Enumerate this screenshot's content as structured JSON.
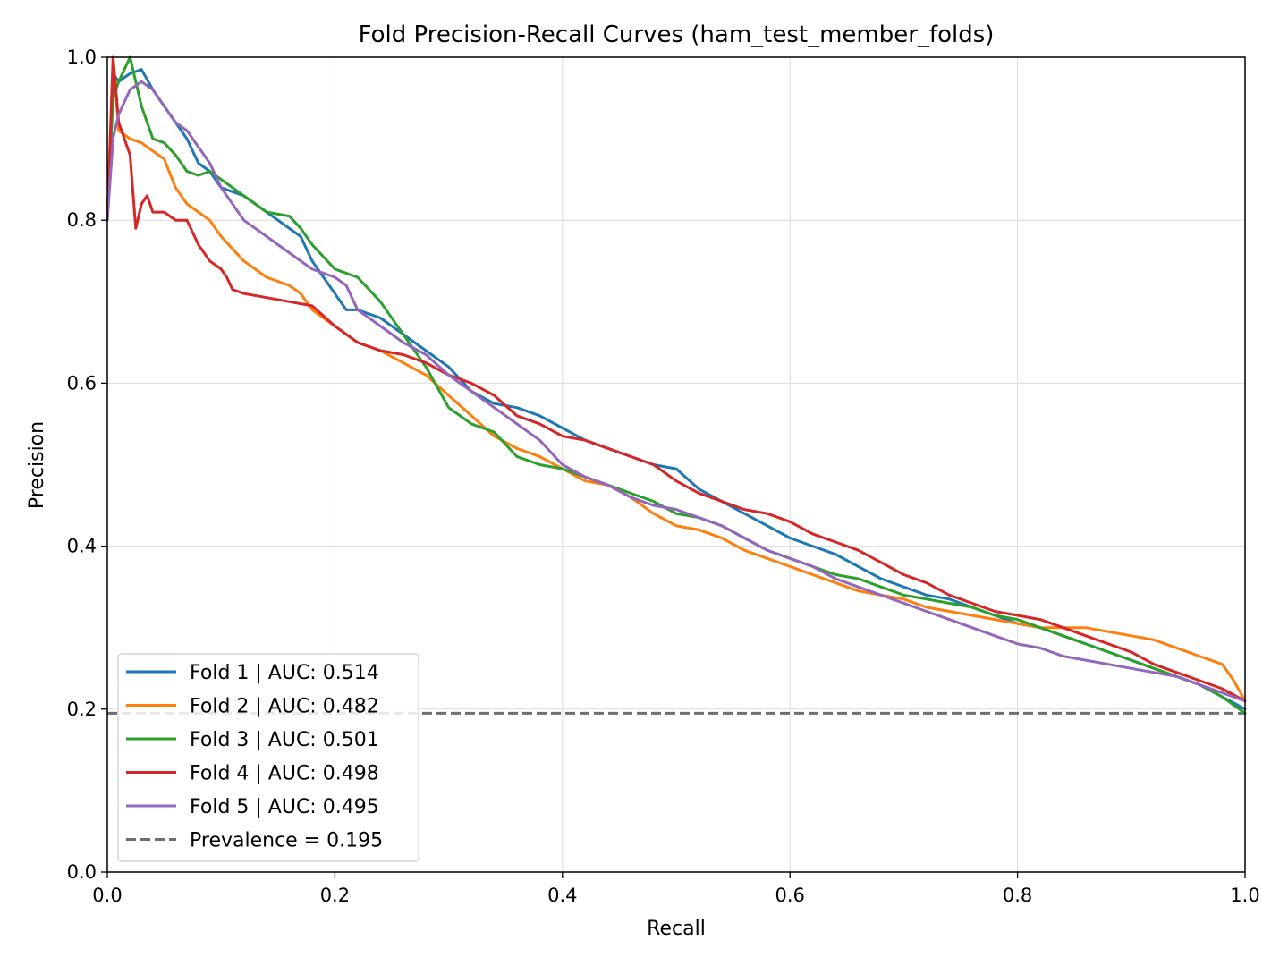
{
  "chart_data": {
    "type": "line",
    "title": "Fold Precision-Recall Curves (ham_test_member_folds)",
    "xlabel": "Recall",
    "ylabel": "Precision",
    "xlim": [
      0.0,
      1.0
    ],
    "ylim": [
      0.0,
      1.0
    ],
    "xticks": [
      "0.0",
      "0.2",
      "0.4",
      "0.6",
      "0.8",
      "1.0"
    ],
    "yticks": [
      "0.0",
      "0.2",
      "0.4",
      "0.6",
      "0.8",
      "1.0"
    ],
    "grid": true,
    "legend_position": "lower-left",
    "series": [
      {
        "name": "Fold 1 | AUC: 0.514",
        "color": "#1f77b4",
        "x": [
          0.0,
          0.005,
          0.01,
          0.02,
          0.03,
          0.04,
          0.05,
          0.06,
          0.07,
          0.08,
          0.09,
          0.1,
          0.12,
          0.14,
          0.16,
          0.17,
          0.18,
          0.19,
          0.2,
          0.21,
          0.22,
          0.24,
          0.26,
          0.28,
          0.3,
          0.32,
          0.34,
          0.36,
          0.38,
          0.4,
          0.42,
          0.44,
          0.46,
          0.48,
          0.5,
          0.52,
          0.54,
          0.56,
          0.58,
          0.6,
          0.62,
          0.64,
          0.66,
          0.68,
          0.7,
          0.72,
          0.74,
          0.76,
          0.78,
          0.8,
          0.82,
          0.84,
          0.86,
          0.88,
          0.9,
          0.92,
          0.94,
          0.96,
          0.98,
          1.0
        ],
        "y": [
          0.8,
          0.98,
          0.97,
          0.98,
          0.985,
          0.96,
          0.94,
          0.92,
          0.9,
          0.87,
          0.86,
          0.84,
          0.83,
          0.81,
          0.79,
          0.78,
          0.75,
          0.73,
          0.71,
          0.69,
          0.69,
          0.68,
          0.66,
          0.64,
          0.62,
          0.59,
          0.575,
          0.57,
          0.56,
          0.545,
          0.53,
          0.52,
          0.51,
          0.5,
          0.495,
          0.47,
          0.455,
          0.44,
          0.425,
          0.41,
          0.4,
          0.39,
          0.375,
          0.36,
          0.35,
          0.34,
          0.335,
          0.325,
          0.315,
          0.305,
          0.3,
          0.29,
          0.28,
          0.27,
          0.26,
          0.25,
          0.24,
          0.23,
          0.215,
          0.2
        ]
      },
      {
        "name": "Fold 2 | AUC: 0.482",
        "color": "#ff7f0e",
        "x": [
          0.0,
          0.005,
          0.01,
          0.02,
          0.03,
          0.04,
          0.05,
          0.06,
          0.07,
          0.08,
          0.09,
          0.1,
          0.12,
          0.14,
          0.16,
          0.17,
          0.18,
          0.2,
          0.22,
          0.24,
          0.26,
          0.28,
          0.3,
          0.32,
          0.34,
          0.36,
          0.38,
          0.4,
          0.42,
          0.44,
          0.46,
          0.48,
          0.5,
          0.52,
          0.54,
          0.56,
          0.58,
          0.6,
          0.62,
          0.64,
          0.66,
          0.68,
          0.7,
          0.72,
          0.74,
          0.76,
          0.78,
          0.8,
          0.82,
          0.84,
          0.86,
          0.88,
          0.9,
          0.92,
          0.94,
          0.96,
          0.98,
          0.99,
          1.0
        ],
        "y": [
          0.8,
          1.0,
          0.91,
          0.9,
          0.895,
          0.885,
          0.875,
          0.84,
          0.82,
          0.81,
          0.8,
          0.78,
          0.75,
          0.73,
          0.72,
          0.71,
          0.69,
          0.67,
          0.65,
          0.64,
          0.625,
          0.61,
          0.585,
          0.56,
          0.535,
          0.52,
          0.51,
          0.495,
          0.48,
          0.475,
          0.46,
          0.44,
          0.425,
          0.42,
          0.41,
          0.395,
          0.385,
          0.375,
          0.365,
          0.355,
          0.345,
          0.34,
          0.335,
          0.325,
          0.32,
          0.315,
          0.31,
          0.305,
          0.3,
          0.3,
          0.3,
          0.295,
          0.29,
          0.285,
          0.275,
          0.265,
          0.255,
          0.235,
          0.21
        ]
      },
      {
        "name": "Fold 3 | AUC: 0.501",
        "color": "#2ca02c",
        "x": [
          0.0,
          0.005,
          0.01,
          0.02,
          0.03,
          0.04,
          0.05,
          0.06,
          0.07,
          0.08,
          0.09,
          0.1,
          0.12,
          0.14,
          0.16,
          0.17,
          0.18,
          0.2,
          0.22,
          0.24,
          0.26,
          0.28,
          0.3,
          0.32,
          0.34,
          0.36,
          0.38,
          0.4,
          0.42,
          0.44,
          0.46,
          0.48,
          0.5,
          0.52,
          0.54,
          0.56,
          0.58,
          0.6,
          0.62,
          0.64,
          0.66,
          0.68,
          0.7,
          0.72,
          0.74,
          0.76,
          0.78,
          0.8,
          0.82,
          0.84,
          0.86,
          0.88,
          0.9,
          0.92,
          0.94,
          0.96,
          0.98,
          1.0
        ],
        "y": [
          0.8,
          0.95,
          0.97,
          1.0,
          0.94,
          0.9,
          0.895,
          0.88,
          0.86,
          0.855,
          0.86,
          0.85,
          0.83,
          0.81,
          0.805,
          0.79,
          0.77,
          0.74,
          0.73,
          0.7,
          0.66,
          0.62,
          0.57,
          0.55,
          0.54,
          0.51,
          0.5,
          0.495,
          0.485,
          0.475,
          0.465,
          0.455,
          0.44,
          0.435,
          0.425,
          0.41,
          0.395,
          0.385,
          0.375,
          0.365,
          0.36,
          0.35,
          0.34,
          0.335,
          0.33,
          0.325,
          0.315,
          0.31,
          0.3,
          0.29,
          0.28,
          0.27,
          0.26,
          0.25,
          0.24,
          0.23,
          0.215,
          0.195
        ]
      },
      {
        "name": "Fold 4 | AUC: 0.498",
        "color": "#d62728",
        "x": [
          0.0,
          0.005,
          0.01,
          0.02,
          0.025,
          0.03,
          0.035,
          0.04,
          0.05,
          0.06,
          0.07,
          0.08,
          0.09,
          0.1,
          0.105,
          0.11,
          0.12,
          0.14,
          0.16,
          0.18,
          0.2,
          0.22,
          0.24,
          0.26,
          0.28,
          0.3,
          0.32,
          0.34,
          0.36,
          0.38,
          0.4,
          0.42,
          0.44,
          0.46,
          0.48,
          0.5,
          0.52,
          0.54,
          0.56,
          0.58,
          0.6,
          0.62,
          0.64,
          0.66,
          0.68,
          0.7,
          0.72,
          0.74,
          0.76,
          0.78,
          0.8,
          0.82,
          0.84,
          0.86,
          0.88,
          0.9,
          0.92,
          0.94,
          0.96,
          0.98,
          1.0
        ],
        "y": [
          0.8,
          1.0,
          0.92,
          0.88,
          0.79,
          0.82,
          0.83,
          0.81,
          0.81,
          0.8,
          0.8,
          0.77,
          0.75,
          0.74,
          0.73,
          0.715,
          0.71,
          0.705,
          0.7,
          0.695,
          0.67,
          0.65,
          0.64,
          0.635,
          0.625,
          0.61,
          0.6,
          0.585,
          0.56,
          0.55,
          0.535,
          0.53,
          0.52,
          0.51,
          0.5,
          0.48,
          0.465,
          0.455,
          0.445,
          0.44,
          0.43,
          0.415,
          0.405,
          0.395,
          0.38,
          0.365,
          0.355,
          0.34,
          0.33,
          0.32,
          0.315,
          0.31,
          0.3,
          0.29,
          0.28,
          0.27,
          0.255,
          0.245,
          0.235,
          0.225,
          0.21
        ]
      },
      {
        "name": "Fold 5 | AUC: 0.495",
        "color": "#9467bd",
        "x": [
          0.0,
          0.005,
          0.01,
          0.02,
          0.03,
          0.04,
          0.05,
          0.06,
          0.07,
          0.08,
          0.09,
          0.1,
          0.12,
          0.14,
          0.16,
          0.17,
          0.18,
          0.2,
          0.21,
          0.22,
          0.24,
          0.26,
          0.28,
          0.3,
          0.32,
          0.34,
          0.36,
          0.38,
          0.4,
          0.42,
          0.44,
          0.46,
          0.48,
          0.5,
          0.52,
          0.54,
          0.56,
          0.58,
          0.6,
          0.62,
          0.64,
          0.66,
          0.68,
          0.7,
          0.72,
          0.74,
          0.76,
          0.78,
          0.8,
          0.82,
          0.84,
          0.86,
          0.88,
          0.9,
          0.92,
          0.94,
          0.96,
          0.98,
          1.0
        ],
        "y": [
          0.8,
          0.9,
          0.93,
          0.96,
          0.97,
          0.96,
          0.94,
          0.92,
          0.91,
          0.89,
          0.87,
          0.84,
          0.8,
          0.78,
          0.76,
          0.75,
          0.74,
          0.73,
          0.72,
          0.69,
          0.67,
          0.65,
          0.635,
          0.61,
          0.59,
          0.57,
          0.55,
          0.53,
          0.5,
          0.485,
          0.475,
          0.46,
          0.45,
          0.445,
          0.435,
          0.425,
          0.41,
          0.395,
          0.385,
          0.375,
          0.36,
          0.35,
          0.34,
          0.33,
          0.32,
          0.31,
          0.3,
          0.29,
          0.28,
          0.275,
          0.265,
          0.26,
          0.255,
          0.25,
          0.245,
          0.24,
          0.23,
          0.22,
          0.21
        ]
      }
    ],
    "reference_line": {
      "name": "Prevalence = 0.195",
      "y": 0.195,
      "color": "#6b6f74",
      "style": "dashed"
    }
  }
}
